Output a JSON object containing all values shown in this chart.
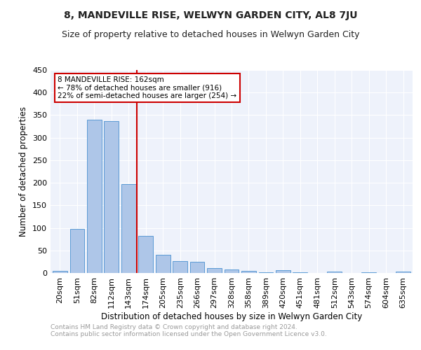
{
  "title": "8, MANDEVILLE RISE, WELWYN GARDEN CITY, AL8 7JU",
  "subtitle": "Size of property relative to detached houses in Welwyn Garden City",
  "xlabel": "Distribution of detached houses by size in Welwyn Garden City",
  "ylabel": "Number of detached properties",
  "footnote1": "Contains HM Land Registry data © Crown copyright and database right 2024.",
  "footnote2": "Contains public sector information licensed under the Open Government Licence v3.0.",
  "categories": [
    "20sqm",
    "51sqm",
    "82sqm",
    "112sqm",
    "143sqm",
    "174sqm",
    "205sqm",
    "235sqm",
    "266sqm",
    "297sqm",
    "328sqm",
    "358sqm",
    "389sqm",
    "420sqm",
    "451sqm",
    "481sqm",
    "512sqm",
    "543sqm",
    "574sqm",
    "604sqm",
    "635sqm"
  ],
  "values": [
    5,
    98,
    340,
    336,
    197,
    83,
    41,
    27,
    25,
    11,
    7,
    5,
    1,
    6,
    1,
    0,
    3,
    0,
    1,
    0,
    3
  ],
  "bar_color": "#aec6e8",
  "bar_edge_color": "#5b9bd5",
  "vline_x": 4.5,
  "vline_color": "#cc0000",
  "annotation_text": "8 MANDEVILLE RISE: 162sqm\n← 78% of detached houses are smaller (916)\n22% of semi-detached houses are larger (254) →",
  "annotation_box_color": "#cc0000",
  "ylim": [
    0,
    450
  ],
  "background_color": "#eef2fb",
  "grid_color": "#ffffff",
  "title_fontsize": 10,
  "subtitle_fontsize": 9,
  "footnote_fontsize": 6.5,
  "ylabel_fontsize": 8.5,
  "xlabel_fontsize": 8.5,
  "tick_fontsize": 8,
  "ann_fontsize": 7.5
}
